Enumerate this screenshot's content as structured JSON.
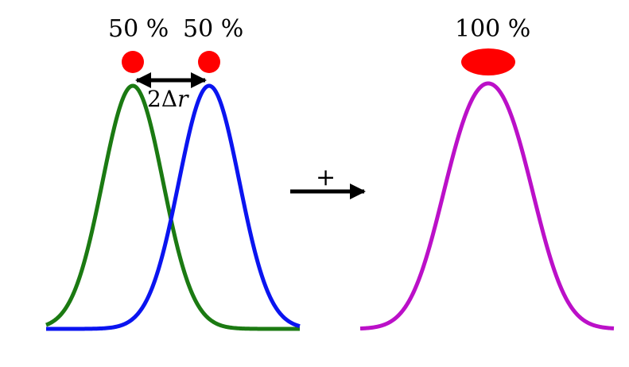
{
  "left_panel": {
    "green_label": "50 %",
    "blue_label": "50 %",
    "separation_label": {
      "coefficient": "2",
      "delta": "Δ",
      "variable": "r"
    }
  },
  "operator": {
    "symbol": "+"
  },
  "right_panel": {
    "sum_label": "100 %"
  },
  "colors": {
    "green_curve": "#1b7a12",
    "blue_curve": "#0a14f0",
    "magenta_curve": "#bb10c8",
    "source_dot": "#ff0000",
    "arrow": "#000000"
  }
}
